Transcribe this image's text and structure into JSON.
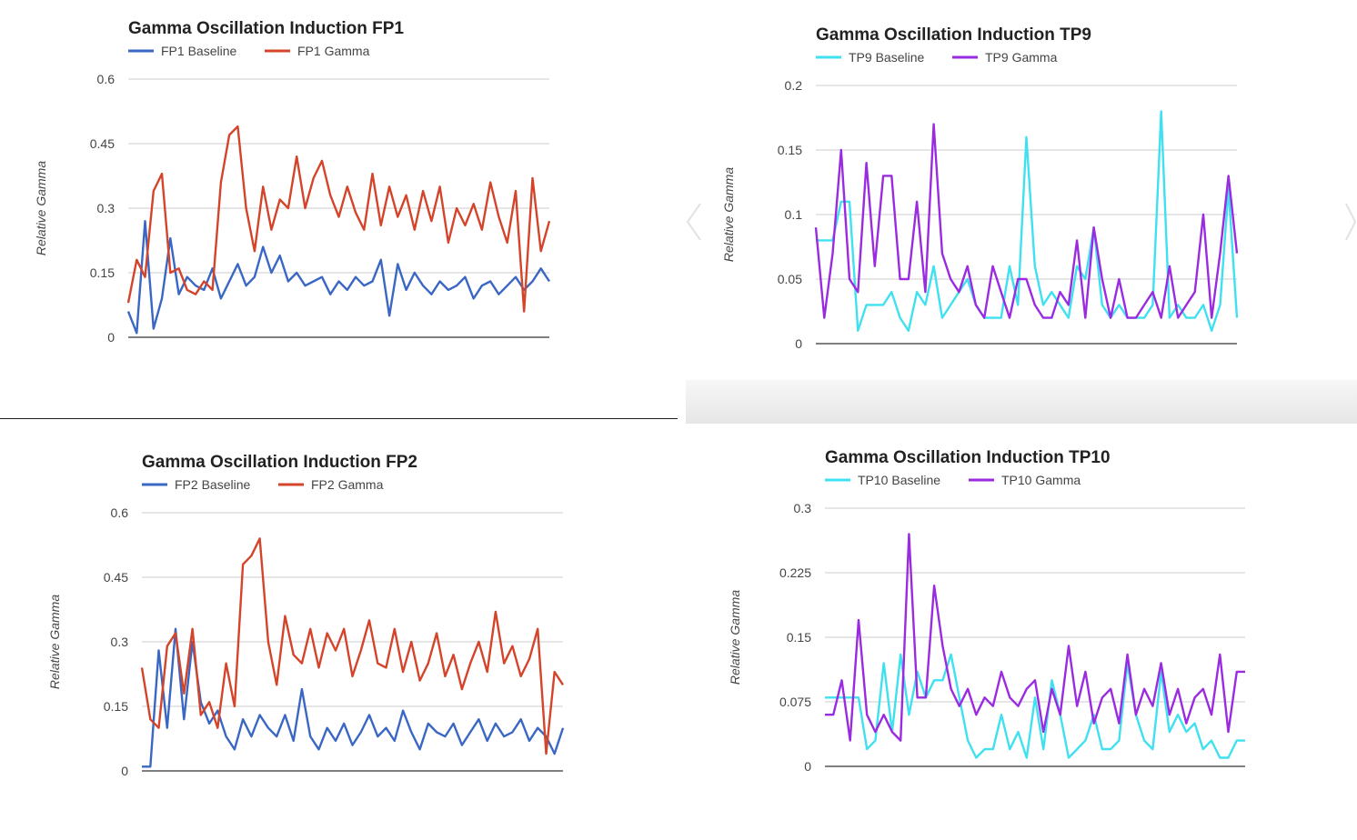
{
  "chart_data": [
    {
      "type": "line",
      "title": "Gamma Oscillation Induction FP1",
      "ylabel": "Relative Gamma",
      "ylim": [
        0,
        0.6
      ],
      "yticks": [
        "0",
        "0.15",
        "0.3",
        "0.45",
        "0.6"
      ],
      "grid": true,
      "legend": "top-left",
      "x": [
        0,
        2,
        4,
        6,
        8,
        10,
        12,
        14,
        16,
        18,
        20,
        22,
        24,
        26,
        28,
        30,
        32,
        34,
        36,
        38,
        40,
        42,
        44,
        46,
        48,
        50,
        52,
        54,
        56,
        58,
        60,
        62,
        64,
        66,
        68,
        70,
        72,
        74,
        76,
        78,
        80,
        82,
        84,
        86,
        88,
        90,
        92,
        94,
        96,
        98,
        100
      ],
      "series": [
        {
          "name": "FP1 Baseline",
          "color": "#3a66c4",
          "values": [
            0.06,
            0.01,
            0.27,
            0.02,
            0.09,
            0.23,
            0.1,
            0.14,
            0.12,
            0.11,
            0.16,
            0.09,
            0.13,
            0.17,
            0.12,
            0.14,
            0.21,
            0.15,
            0.19,
            0.13,
            0.15,
            0.12,
            0.13,
            0.14,
            0.1,
            0.13,
            0.11,
            0.14,
            0.12,
            0.13,
            0.18,
            0.05,
            0.17,
            0.11,
            0.15,
            0.12,
            0.1,
            0.13,
            0.11,
            0.12,
            0.14,
            0.09,
            0.12,
            0.13,
            0.1,
            0.12,
            0.14,
            0.11,
            0.13,
            0.16,
            0.13
          ]
        },
        {
          "name": "FP1 Gamma",
          "color": "#d4442a",
          "values": [
            0.08,
            0.18,
            0.14,
            0.34,
            0.38,
            0.15,
            0.16,
            0.11,
            0.1,
            0.13,
            0.11,
            0.36,
            0.47,
            0.49,
            0.3,
            0.2,
            0.35,
            0.25,
            0.32,
            0.3,
            0.42,
            0.3,
            0.37,
            0.41,
            0.33,
            0.28,
            0.35,
            0.29,
            0.25,
            0.38,
            0.26,
            0.35,
            0.28,
            0.33,
            0.25,
            0.34,
            0.27,
            0.35,
            0.22,
            0.3,
            0.26,
            0.31,
            0.25,
            0.36,
            0.28,
            0.22,
            0.34,
            0.06,
            0.37,
            0.2,
            0.27
          ]
        }
      ]
    },
    {
      "type": "line",
      "title": "Gamma Oscillation Induction TP9",
      "ylabel": "Relative Gamma",
      "ylim": [
        0,
        0.2
      ],
      "yticks": [
        "0",
        "0.05",
        "0.1",
        "0.15",
        "0.2"
      ],
      "grid": true,
      "legend": "top-left",
      "x": [
        0,
        2,
        4,
        6,
        8,
        10,
        12,
        14,
        16,
        18,
        20,
        22,
        24,
        26,
        28,
        30,
        32,
        34,
        36,
        38,
        40,
        42,
        44,
        46,
        48,
        50,
        52,
        54,
        56,
        58,
        60,
        62,
        64,
        66,
        68,
        70,
        72,
        74,
        76,
        78,
        80,
        82,
        84,
        86,
        88,
        90,
        92,
        94,
        96,
        98,
        100
      ],
      "series": [
        {
          "name": "TP9 Baseline",
          "color": "#3fe0f0",
          "values": [
            0.08,
            0.08,
            0.08,
            0.11,
            0.11,
            0.01,
            0.03,
            0.03,
            0.03,
            0.04,
            0.02,
            0.01,
            0.04,
            0.03,
            0.06,
            0.02,
            0.03,
            0.04,
            0.05,
            0.03,
            0.02,
            0.02,
            0.02,
            0.06,
            0.03,
            0.16,
            0.06,
            0.03,
            0.04,
            0.03,
            0.02,
            0.06,
            0.05,
            0.09,
            0.03,
            0.02,
            0.03,
            0.02,
            0.02,
            0.02,
            0.03,
            0.18,
            0.02,
            0.03,
            0.02,
            0.02,
            0.03,
            0.01,
            0.03,
            0.12,
            0.02
          ]
        },
        {
          "name": "TP9 Gamma",
          "color": "#9a2be0",
          "values": [
            0.09,
            0.02,
            0.07,
            0.15,
            0.05,
            0.04,
            0.14,
            0.06,
            0.13,
            0.13,
            0.05,
            0.05,
            0.11,
            0.04,
            0.17,
            0.07,
            0.05,
            0.04,
            0.06,
            0.03,
            0.02,
            0.06,
            0.04,
            0.02,
            0.05,
            0.05,
            0.03,
            0.02,
            0.02,
            0.04,
            0.03,
            0.08,
            0.02,
            0.09,
            0.05,
            0.02,
            0.05,
            0.02,
            0.02,
            0.03,
            0.04,
            0.02,
            0.06,
            0.02,
            0.03,
            0.04,
            0.1,
            0.02,
            0.07,
            0.13,
            0.07
          ]
        }
      ]
    },
    {
      "type": "line",
      "title": "Gamma Oscillation Induction FP2",
      "ylabel": "Relative Gamma",
      "ylim": [
        0,
        0.6
      ],
      "yticks": [
        "0",
        "0.15",
        "0.3",
        "0.45",
        "0.6"
      ],
      "grid": true,
      "legend": "top-left",
      "x": [
        0,
        2,
        4,
        6,
        8,
        10,
        12,
        14,
        16,
        18,
        20,
        22,
        24,
        26,
        28,
        30,
        32,
        34,
        36,
        38,
        40,
        42,
        44,
        46,
        48,
        50,
        52,
        54,
        56,
        58,
        60,
        62,
        64,
        66,
        68,
        70,
        72,
        74,
        76,
        78,
        80,
        82,
        84,
        86,
        88,
        90,
        92,
        94,
        96,
        98,
        100
      ],
      "series": [
        {
          "name": "FP2 Baseline",
          "color": "#3a66c4",
          "values": [
            0.01,
            0.01,
            0.28,
            0.1,
            0.33,
            0.12,
            0.3,
            0.16,
            0.11,
            0.14,
            0.08,
            0.05,
            0.12,
            0.08,
            0.13,
            0.1,
            0.08,
            0.13,
            0.07,
            0.19,
            0.08,
            0.05,
            0.1,
            0.07,
            0.11,
            0.06,
            0.09,
            0.13,
            0.08,
            0.1,
            0.07,
            0.14,
            0.09,
            0.05,
            0.11,
            0.09,
            0.08,
            0.11,
            0.06,
            0.09,
            0.12,
            0.07,
            0.11,
            0.08,
            0.09,
            0.12,
            0.07,
            0.1,
            0.08,
            0.04,
            0.1
          ]
        },
        {
          "name": "FP2 Gamma",
          "color": "#d4442a",
          "values": [
            0.24,
            0.12,
            0.1,
            0.29,
            0.32,
            0.18,
            0.33,
            0.13,
            0.16,
            0.1,
            0.25,
            0.15,
            0.48,
            0.5,
            0.54,
            0.3,
            0.2,
            0.36,
            0.27,
            0.25,
            0.33,
            0.24,
            0.32,
            0.28,
            0.33,
            0.22,
            0.28,
            0.35,
            0.25,
            0.24,
            0.33,
            0.23,
            0.3,
            0.21,
            0.25,
            0.32,
            0.22,
            0.27,
            0.19,
            0.25,
            0.3,
            0.23,
            0.37,
            0.25,
            0.29,
            0.22,
            0.26,
            0.33,
            0.04,
            0.23,
            0.2
          ]
        }
      ]
    },
    {
      "type": "line",
      "title": "Gamma Oscillation Induction TP10",
      "ylabel": "Relative Gamma",
      "ylim": [
        0,
        0.3
      ],
      "yticks": [
        "0",
        "0.075",
        "0.15",
        "0.225",
        "0.3"
      ],
      "grid": true,
      "legend": "top-left",
      "x": [
        0,
        2,
        4,
        6,
        8,
        10,
        12,
        14,
        16,
        18,
        20,
        22,
        24,
        26,
        28,
        30,
        32,
        34,
        36,
        38,
        40,
        42,
        44,
        46,
        48,
        50,
        52,
        54,
        56,
        58,
        60,
        62,
        64,
        66,
        68,
        70,
        72,
        74,
        76,
        78,
        80,
        82,
        84,
        86,
        88,
        90,
        92,
        94,
        96,
        98,
        100
      ],
      "series": [
        {
          "name": "TP10 Baseline",
          "color": "#3fe0f0",
          "values": [
            0.08,
            0.08,
            0.08,
            0.08,
            0.08,
            0.02,
            0.03,
            0.12,
            0.04,
            0.13,
            0.06,
            0.11,
            0.08,
            0.1,
            0.1,
            0.13,
            0.08,
            0.03,
            0.01,
            0.02,
            0.02,
            0.06,
            0.02,
            0.04,
            0.01,
            0.08,
            0.02,
            0.1,
            0.06,
            0.01,
            0.02,
            0.03,
            0.06,
            0.02,
            0.02,
            0.03,
            0.12,
            0.06,
            0.03,
            0.02,
            0.11,
            0.04,
            0.06,
            0.04,
            0.05,
            0.02,
            0.03,
            0.01,
            0.01,
            0.03,
            0.03
          ]
        },
        {
          "name": "TP10 Gamma",
          "color": "#9a2be0",
          "values": [
            0.06,
            0.06,
            0.1,
            0.03,
            0.17,
            0.06,
            0.04,
            0.06,
            0.04,
            0.03,
            0.27,
            0.08,
            0.08,
            0.21,
            0.14,
            0.09,
            0.07,
            0.09,
            0.06,
            0.08,
            0.07,
            0.11,
            0.08,
            0.07,
            0.09,
            0.1,
            0.04,
            0.09,
            0.06,
            0.14,
            0.07,
            0.11,
            0.05,
            0.08,
            0.09,
            0.05,
            0.13,
            0.06,
            0.09,
            0.07,
            0.12,
            0.06,
            0.09,
            0.05,
            0.08,
            0.09,
            0.06,
            0.13,
            0.04,
            0.11,
            0.11
          ]
        }
      ]
    }
  ]
}
